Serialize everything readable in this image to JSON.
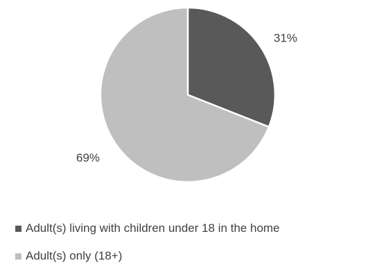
{
  "chart_data": {
    "type": "pie",
    "title": "",
    "slices": [
      {
        "label": "Adult(s) living with children under 18 in the home",
        "value": 31,
        "display": "31%",
        "color": "#595959"
      },
      {
        "label": "Adult(s) only (18+)",
        "value": 69,
        "display": "69%",
        "color": "#bfbfbf"
      }
    ],
    "start_angle": "12 o'clock",
    "direction": "clockwise",
    "legend_position": "bottom",
    "slice_border_color": "#ffffff"
  }
}
